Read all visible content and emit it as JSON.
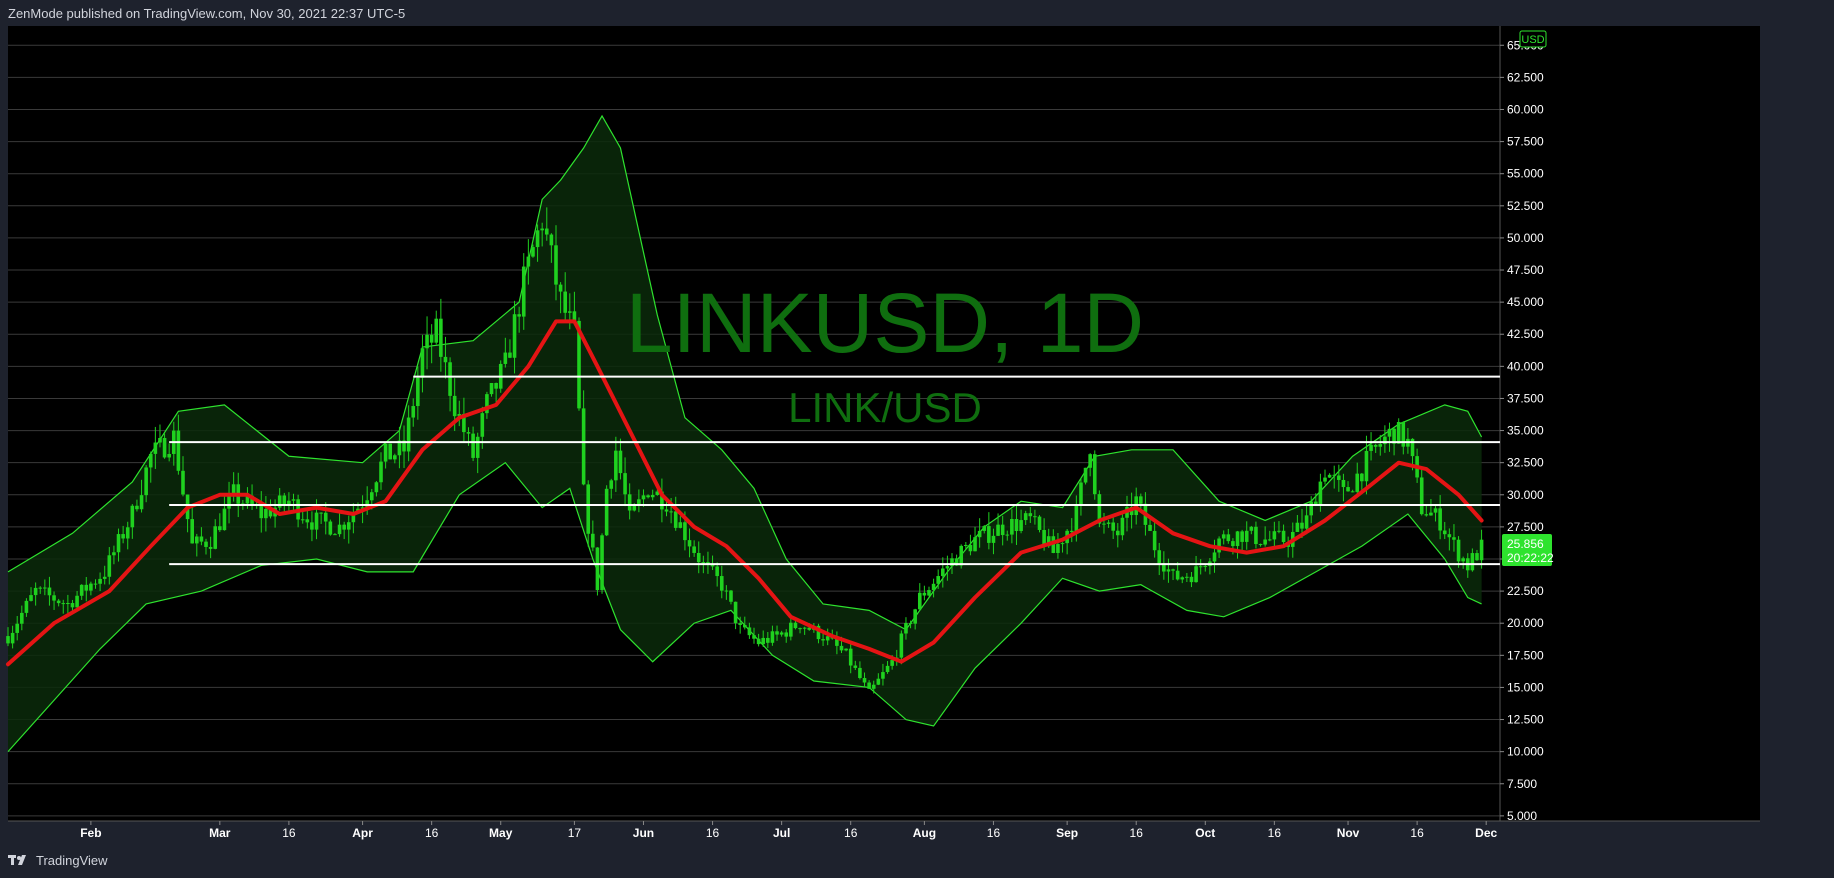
{
  "header": {
    "text": "ZenMode published on TradingView.com, Nov 30, 2021 22:37 UTC-5"
  },
  "footer": {
    "logo_icon": "tradingview-logo-icon",
    "brand": "TradingView"
  },
  "colors": {
    "background": "#000000",
    "grid": "#3a3a3a",
    "candle": "#1fd11f",
    "band": "#2ee32e",
    "band_fill": "#0a2a0a",
    "ma": "#e41414",
    "levels": "#ffffff",
    "watermark": "#0f6e0f",
    "price_tag": "#2ee32e"
  },
  "chart_data": {
    "type": "candlestick",
    "symbol_watermark": "LINKUSD, 1D",
    "pair_watermark": "LINK/USD",
    "currency_label": "USD",
    "last_price_label": "25.856",
    "countdown_label": "20:22:22",
    "last_price": 25.856,
    "x_range": [
      "2021-01-14",
      "2021-12-04"
    ],
    "y_range": [
      4.6,
      66.5
    ],
    "y_ticks": [
      5,
      7.5,
      10,
      12.5,
      15,
      17.5,
      20,
      22.5,
      25,
      27.5,
      30,
      32.5,
      35,
      37.5,
      40,
      42.5,
      45,
      47.5,
      50,
      52.5,
      55,
      57.5,
      60,
      62.5,
      65
    ],
    "y_tick_labels": [
      "5.000",
      "7.500",
      "10.000",
      "12.500",
      "15.000",
      "17.500",
      "20.000",
      "22.500",
      "25.000",
      "27.500",
      "30.000",
      "32.500",
      "35.000",
      "37.500",
      "40.000",
      "42.500",
      "45.000",
      "47.500",
      "50.000",
      "52.500",
      "55.000",
      "57.500",
      "60.000",
      "62.500",
      "65.000"
    ],
    "x_ticks": [
      {
        "date": "2021-02-01",
        "label": "Feb"
      },
      {
        "date": "2021-03-01",
        "label": "Mar"
      },
      {
        "date": "2021-03-16",
        "label": "16"
      },
      {
        "date": "2021-04-01",
        "label": "Apr"
      },
      {
        "date": "2021-04-16",
        "label": "16"
      },
      {
        "date": "2021-05-01",
        "label": "May"
      },
      {
        "date": "2021-05-17",
        "label": "17"
      },
      {
        "date": "2021-06-01",
        "label": "Jun"
      },
      {
        "date": "2021-06-16",
        "label": "16"
      },
      {
        "date": "2021-07-01",
        "label": "Jul"
      },
      {
        "date": "2021-07-16",
        "label": "16"
      },
      {
        "date": "2021-08-01",
        "label": "Aug"
      },
      {
        "date": "2021-08-16",
        "label": "16"
      },
      {
        "date": "2021-09-01",
        "label": "Sep"
      },
      {
        "date": "2021-09-16",
        "label": "16"
      },
      {
        "date": "2021-10-01",
        "label": "Oct"
      },
      {
        "date": "2021-10-16",
        "label": "16"
      },
      {
        "date": "2021-11-01",
        "label": "Nov"
      },
      {
        "date": "2021-11-16",
        "label": "16"
      },
      {
        "date": "2021-12-01",
        "label": "Dec"
      }
    ],
    "horizontal_levels": [
      {
        "price": 39.2,
        "from": "2021-04-12",
        "to": "2021-12-04"
      },
      {
        "price": 34.1,
        "from": "2021-02-18",
        "to": "2021-12-04"
      },
      {
        "price": 29.2,
        "from": "2021-02-18",
        "to": "2021-12-04"
      },
      {
        "price": 24.6,
        "from": "2021-02-18",
        "to": "2021-12-04"
      }
    ],
    "price_anchors": [
      [
        "2021-01-14",
        19.0
      ],
      [
        "2021-01-20",
        22.5
      ],
      [
        "2021-01-27",
        21.5
      ],
      [
        "2021-02-04",
        24.0
      ],
      [
        "2021-02-10",
        28.5
      ],
      [
        "2021-02-14",
        33.0
      ],
      [
        "2021-02-19",
        34.5
      ],
      [
        "2021-02-23",
        26.0
      ],
      [
        "2021-02-27",
        26.5
      ],
      [
        "2021-03-04",
        30.0
      ],
      [
        "2021-03-10",
        28.5
      ],
      [
        "2021-03-16",
        29.5
      ],
      [
        "2021-03-21",
        28.0
      ],
      [
        "2021-03-27",
        27.5
      ],
      [
        "2021-04-01",
        29.5
      ],
      [
        "2021-04-06",
        33.0
      ],
      [
        "2021-04-10",
        33.5
      ],
      [
        "2021-04-14",
        41.0
      ],
      [
        "2021-04-17",
        42.5
      ],
      [
        "2021-04-21",
        37.0
      ],
      [
        "2021-04-25",
        33.0
      ],
      [
        "2021-04-28",
        37.0
      ],
      [
        "2021-05-02",
        40.0
      ],
      [
        "2021-05-06",
        46.5
      ],
      [
        "2021-05-10",
        51.5
      ],
      [
        "2021-05-14",
        45.0
      ],
      [
        "2021-05-17",
        42.5
      ],
      [
        "2021-05-19",
        30.0
      ],
      [
        "2021-05-22",
        23.0
      ],
      [
        "2021-05-24",
        30.5
      ],
      [
        "2021-05-26",
        33.5
      ],
      [
        "2021-05-29",
        28.0
      ],
      [
        "2021-06-02",
        30.5
      ],
      [
        "2021-06-06",
        29.5
      ],
      [
        "2021-06-10",
        27.0
      ],
      [
        "2021-06-14",
        24.5
      ],
      [
        "2021-06-18",
        23.0
      ],
      [
        "2021-06-22",
        19.5
      ],
      [
        "2021-06-26",
        18.5
      ],
      [
        "2021-06-30",
        19.0
      ],
      [
        "2021-07-05",
        20.0
      ],
      [
        "2021-07-10",
        19.0
      ],
      [
        "2021-07-15",
        17.5
      ],
      [
        "2021-07-20",
        14.5
      ],
      [
        "2021-07-25",
        17.0
      ],
      [
        "2021-07-31",
        22.0
      ],
      [
        "2021-08-06",
        24.5
      ],
      [
        "2021-08-12",
        26.5
      ],
      [
        "2021-08-18",
        27.5
      ],
      [
        "2021-08-24",
        28.0
      ],
      [
        "2021-08-29",
        25.5
      ],
      [
        "2021-09-03",
        28.5
      ],
      [
        "2021-09-06",
        34.0
      ],
      [
        "2021-09-08",
        27.5
      ],
      [
        "2021-09-12",
        27.0
      ],
      [
        "2021-09-16",
        29.5
      ],
      [
        "2021-09-20",
        26.0
      ],
      [
        "2021-09-24",
        23.5
      ],
      [
        "2021-09-29",
        24.0
      ],
      [
        "2021-10-04",
        26.5
      ],
      [
        "2021-10-09",
        27.0
      ],
      [
        "2021-10-14",
        26.5
      ],
      [
        "2021-10-19",
        26.5
      ],
      [
        "2021-10-23",
        28.0
      ],
      [
        "2021-10-27",
        32.0
      ],
      [
        "2021-10-31",
        30.0
      ],
      [
        "2021-11-04",
        32.0
      ],
      [
        "2021-11-08",
        34.0
      ],
      [
        "2021-11-11",
        35.0
      ],
      [
        "2021-11-14",
        34.0
      ],
      [
        "2021-11-17",
        29.0
      ],
      [
        "2021-11-21",
        28.0
      ],
      [
        "2021-11-24",
        26.0
      ],
      [
        "2021-11-27",
        24.5
      ],
      [
        "2021-11-30",
        25.856
      ]
    ],
    "bands": {
      "upper_anchors": [
        [
          "2021-01-14",
          24.0
        ],
        [
          "2021-01-28",
          27.0
        ],
        [
          "2021-02-10",
          31.0
        ],
        [
          "2021-02-20",
          36.5
        ],
        [
          "2021-03-02",
          37.0
        ],
        [
          "2021-03-16",
          33.0
        ],
        [
          "2021-04-01",
          32.5
        ],
        [
          "2021-04-09",
          35.0
        ],
        [
          "2021-04-14",
          41.5
        ],
        [
          "2021-04-25",
          42.0
        ],
        [
          "2021-05-05",
          45.0
        ],
        [
          "2021-05-10",
          53.0
        ],
        [
          "2021-05-14",
          54.5
        ],
        [
          "2021-05-19",
          57.0
        ],
        [
          "2021-05-23",
          59.5
        ],
        [
          "2021-05-27",
          57.0
        ],
        [
          "2021-06-04",
          44.0
        ],
        [
          "2021-06-10",
          36.0
        ],
        [
          "2021-06-18",
          33.5
        ],
        [
          "2021-06-25",
          30.5
        ],
        [
          "2021-07-02",
          25.0
        ],
        [
          "2021-07-10",
          21.5
        ],
        [
          "2021-07-20",
          21.0
        ],
        [
          "2021-07-28",
          19.5
        ],
        [
          "2021-08-06",
          24.0
        ],
        [
          "2021-08-14",
          27.5
        ],
        [
          "2021-08-22",
          29.5
        ],
        [
          "2021-08-31",
          29.0
        ],
        [
          "2021-09-07",
          33.0
        ],
        [
          "2021-09-15",
          33.5
        ],
        [
          "2021-09-24",
          33.5
        ],
        [
          "2021-10-04",
          29.5
        ],
        [
          "2021-10-14",
          28.0
        ],
        [
          "2021-10-24",
          29.5
        ],
        [
          "2021-11-02",
          33.0
        ],
        [
          "2021-11-12",
          35.5
        ],
        [
          "2021-11-22",
          37.0
        ],
        [
          "2021-11-27",
          36.5
        ],
        [
          "2021-11-30",
          34.5
        ]
      ],
      "lower_anchors": [
        [
          "2021-01-14",
          10.0
        ],
        [
          "2021-01-24",
          14.0
        ],
        [
          "2021-02-03",
          18.0
        ],
        [
          "2021-02-13",
          21.5
        ],
        [
          "2021-02-25",
          22.5
        ],
        [
          "2021-03-10",
          24.5
        ],
        [
          "2021-03-22",
          25.0
        ],
        [
          "2021-04-02",
          24.0
        ],
        [
          "2021-04-12",
          24.0
        ],
        [
          "2021-04-22",
          30.0
        ],
        [
          "2021-05-02",
          32.5
        ],
        [
          "2021-05-10",
          29.0
        ],
        [
          "2021-05-16",
          30.5
        ],
        [
          "2021-05-21",
          25.0
        ],
        [
          "2021-05-27",
          19.5
        ],
        [
          "2021-06-03",
          17.0
        ],
        [
          "2021-06-12",
          20.0
        ],
        [
          "2021-06-20",
          21.0
        ],
        [
          "2021-06-29",
          17.5
        ],
        [
          "2021-07-08",
          15.5
        ],
        [
          "2021-07-20",
          15.0
        ],
        [
          "2021-07-28",
          12.5
        ],
        [
          "2021-08-03",
          12.0
        ],
        [
          "2021-08-12",
          16.5
        ],
        [
          "2021-08-22",
          20.0
        ],
        [
          "2021-08-31",
          23.5
        ],
        [
          "2021-09-08",
          22.5
        ],
        [
          "2021-09-17",
          23.0
        ],
        [
          "2021-09-27",
          21.0
        ],
        [
          "2021-10-05",
          20.5
        ],
        [
          "2021-10-15",
          22.0
        ],
        [
          "2021-10-25",
          24.0
        ],
        [
          "2021-11-04",
          26.0
        ],
        [
          "2021-11-14",
          28.5
        ],
        [
          "2021-11-22",
          25.0
        ],
        [
          "2021-11-27",
          22.0
        ],
        [
          "2021-11-30",
          21.5
        ]
      ]
    },
    "moving_average": [
      [
        "2021-01-14",
        16.8
      ],
      [
        "2021-01-24",
        20.0
      ],
      [
        "2021-02-05",
        22.5
      ],
      [
        "2021-02-14",
        26.0
      ],
      [
        "2021-02-22",
        29.0
      ],
      [
        "2021-03-01",
        30.0
      ],
      [
        "2021-03-07",
        30.0
      ],
      [
        "2021-03-14",
        28.5
      ],
      [
        "2021-03-22",
        29.0
      ],
      [
        "2021-03-30",
        28.5
      ],
      [
        "2021-04-06",
        29.5
      ],
      [
        "2021-04-14",
        33.5
      ],
      [
        "2021-04-22",
        36.0
      ],
      [
        "2021-04-30",
        37.0
      ],
      [
        "2021-05-07",
        40.0
      ],
      [
        "2021-05-13",
        43.5
      ],
      [
        "2021-05-17",
        43.5
      ],
      [
        "2021-05-22",
        40.0
      ],
      [
        "2021-05-29",
        35.0
      ],
      [
        "2021-06-05",
        30.0
      ],
      [
        "2021-06-12",
        27.5
      ],
      [
        "2021-06-19",
        26.0
      ],
      [
        "2021-06-26",
        23.5
      ],
      [
        "2021-07-03",
        20.5
      ],
      [
        "2021-07-12",
        19.0
      ],
      [
        "2021-07-20",
        18.0
      ],
      [
        "2021-07-27",
        17.0
      ],
      [
        "2021-08-03",
        18.5
      ],
      [
        "2021-08-12",
        22.0
      ],
      [
        "2021-08-22",
        25.5
      ],
      [
        "2021-08-31",
        26.5
      ],
      [
        "2021-09-08",
        28.0
      ],
      [
        "2021-09-16",
        29.0
      ],
      [
        "2021-09-24",
        27.0
      ],
      [
        "2021-10-02",
        26.0
      ],
      [
        "2021-10-10",
        25.5
      ],
      [
        "2021-10-18",
        26.0
      ],
      [
        "2021-10-27",
        28.0
      ],
      [
        "2021-11-05",
        30.5
      ],
      [
        "2021-11-12",
        32.5
      ],
      [
        "2021-11-18",
        32.0
      ],
      [
        "2021-11-25",
        30.0
      ],
      [
        "2021-11-30",
        28.0
      ]
    ],
    "grid": true
  }
}
